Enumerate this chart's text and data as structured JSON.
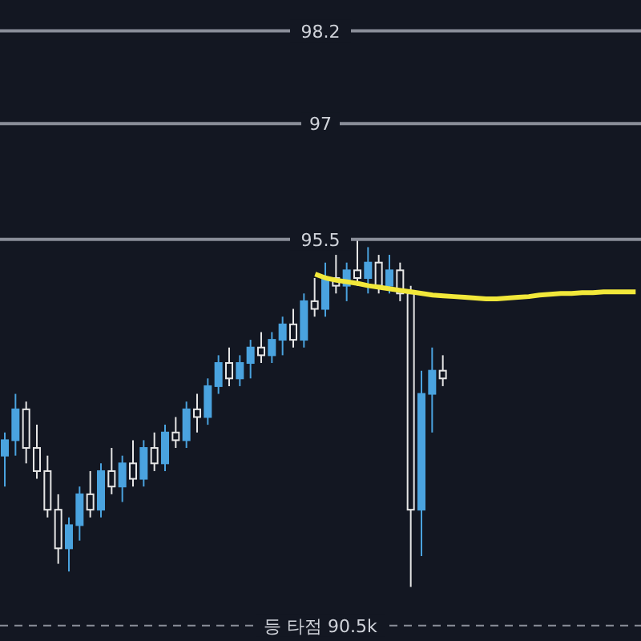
{
  "chart_data": {
    "type": "candlestick",
    "categories": [
      null,
      null,
      null,
      null,
      null,
      null,
      null,
      null,
      null,
      null,
      null,
      null,
      null,
      null,
      null,
      null,
      null,
      null,
      null,
      null,
      null,
      null,
      null,
      null,
      null,
      null,
      null,
      null,
      null,
      null,
      null,
      null,
      null,
      null,
      null,
      null,
      null,
      null,
      null,
      null,
      null,
      null,
      null,
      null,
      null,
      null,
      null,
      null,
      null,
      null,
      null,
      null,
      null,
      null,
      null,
      null,
      null,
      null,
      null,
      null
    ],
    "ohlc": [
      [
        92.7,
        93.0,
        92.3,
        92.9
      ],
      [
        92.9,
        93.5,
        92.7,
        93.3
      ],
      [
        93.3,
        93.4,
        92.6,
        92.8
      ],
      [
        92.8,
        93.1,
        92.4,
        92.5
      ],
      [
        92.5,
        92.7,
        91.9,
        92.0
      ],
      [
        92.0,
        92.2,
        91.3,
        91.5
      ],
      [
        91.5,
        91.9,
        91.2,
        91.8
      ],
      [
        91.8,
        92.3,
        91.6,
        92.2
      ],
      [
        92.2,
        92.5,
        91.9,
        92.0
      ],
      [
        92.0,
        92.6,
        91.9,
        92.5
      ],
      [
        92.5,
        92.8,
        92.2,
        92.3
      ],
      [
        92.3,
        92.7,
        92.1,
        92.6
      ],
      [
        92.6,
        92.9,
        92.3,
        92.4
      ],
      [
        92.4,
        92.9,
        92.3,
        92.8
      ],
      [
        92.8,
        93.0,
        92.5,
        92.6
      ],
      [
        92.6,
        93.1,
        92.5,
        93.0
      ],
      [
        93.0,
        93.2,
        92.8,
        92.9
      ],
      [
        92.9,
        93.4,
        92.8,
        93.3
      ],
      [
        93.3,
        93.5,
        93.0,
        93.2
      ],
      [
        93.2,
        93.7,
        93.1,
        93.6
      ],
      [
        93.6,
        94.0,
        93.5,
        93.9
      ],
      [
        93.9,
        94.1,
        93.6,
        93.7
      ],
      [
        93.7,
        94.0,
        93.6,
        93.9
      ],
      [
        93.9,
        94.2,
        93.7,
        94.1
      ],
      [
        94.1,
        94.3,
        93.9,
        94.0
      ],
      [
        94.0,
        94.3,
        93.9,
        94.2
      ],
      [
        94.2,
        94.5,
        94.0,
        94.4
      ],
      [
        94.4,
        94.6,
        94.1,
        94.2
      ],
      [
        94.2,
        94.8,
        94.1,
        94.7
      ],
      [
        94.7,
        95.0,
        94.5,
        94.6
      ],
      [
        94.6,
        95.2,
        94.5,
        95.0
      ],
      [
        95.0,
        95.3,
        94.8,
        94.9
      ],
      [
        94.9,
        95.2,
        94.7,
        95.1
      ],
      [
        95.1,
        95.5,
        94.9,
        95.0
      ],
      [
        95.0,
        95.4,
        94.8,
        95.2
      ],
      [
        95.2,
        95.3,
        94.8,
        94.9
      ],
      [
        94.9,
        95.3,
        94.8,
        95.1
      ],
      [
        95.1,
        95.2,
        94.7,
        94.8
      ],
      [
        94.8,
        94.9,
        91.0,
        92.0
      ],
      [
        92.0,
        93.8,
        91.4,
        93.5
      ],
      [
        93.5,
        94.1,
        93.0,
        93.8
      ],
      [
        93.8,
        94.0,
        93.6,
        93.7
      ],
      null,
      null,
      null,
      null,
      null,
      null,
      null,
      null,
      null,
      null,
      null,
      null,
      null,
      null,
      null,
      null,
      null,
      null
    ],
    "colors": [
      "#4aa3df",
      "#4aa3df",
      "#e6e6e6",
      "#e6e6e6",
      "#e6e6e6",
      "#e6e6e6",
      "#4aa3df",
      "#4aa3df",
      "#e6e6e6",
      "#4aa3df",
      "#e6e6e6",
      "#4aa3df",
      "#e6e6e6",
      "#4aa3df",
      "#e6e6e6",
      "#4aa3df",
      "#e6e6e6",
      "#4aa3df",
      "#e6e6e6",
      "#4aa3df",
      "#4aa3df",
      "#e6e6e6",
      "#4aa3df",
      "#4aa3df",
      "#e6e6e6",
      "#4aa3df",
      "#4aa3df",
      "#e6e6e6",
      "#4aa3df",
      "#e6e6e6",
      "#4aa3df",
      "#e6e6e6",
      "#4aa3df",
      "#e6e6e6",
      "#4aa3df",
      "#e6e6e6",
      "#4aa3df",
      "#e6e6e6",
      "#e6e6e6",
      "#4aa3df",
      "#4aa3df",
      "#e6e6e6",
      null,
      null,
      null,
      null,
      null,
      null,
      null,
      null,
      null,
      null,
      null,
      null,
      null,
      null,
      null,
      null,
      null,
      null
    ],
    "series": [
      {
        "type": "line",
        "color": "#f2e83a",
        "values": [
          null,
          null,
          null,
          null,
          null,
          null,
          null,
          null,
          null,
          null,
          null,
          null,
          null,
          null,
          null,
          null,
          null,
          null,
          null,
          null,
          null,
          null,
          null,
          null,
          null,
          null,
          null,
          null,
          null,
          95.05,
          95.0,
          94.97,
          94.95,
          94.93,
          94.9,
          94.88,
          94.86,
          94.84,
          94.82,
          94.8,
          94.78,
          94.77,
          94.76,
          94.75,
          94.74,
          94.73,
          94.73,
          94.74,
          94.75,
          94.76,
          94.78,
          94.79,
          94.8,
          94.8,
          94.81,
          94.81,
          94.82,
          94.82,
          94.82,
          94.82
        ]
      }
    ],
    "ylim": [
      90.3,
      98.6
    ],
    "ref_lines": [
      {
        "axis": "y",
        "value": 98.2,
        "label": "98.2",
        "color": "#8a8e99"
      },
      {
        "axis": "y",
        "value": 97,
        "label": "97",
        "color": "#8a8e99"
      },
      {
        "axis": "y",
        "value": 95.5,
        "label": "95.5",
        "color": "#8a8e99"
      },
      {
        "axis": "y",
        "value": 90.5,
        "label": "등 타점 90.5k",
        "color": "#8a8e99",
        "line_style": "dashed"
      }
    ],
    "grid": false,
    "legend": false
  }
}
